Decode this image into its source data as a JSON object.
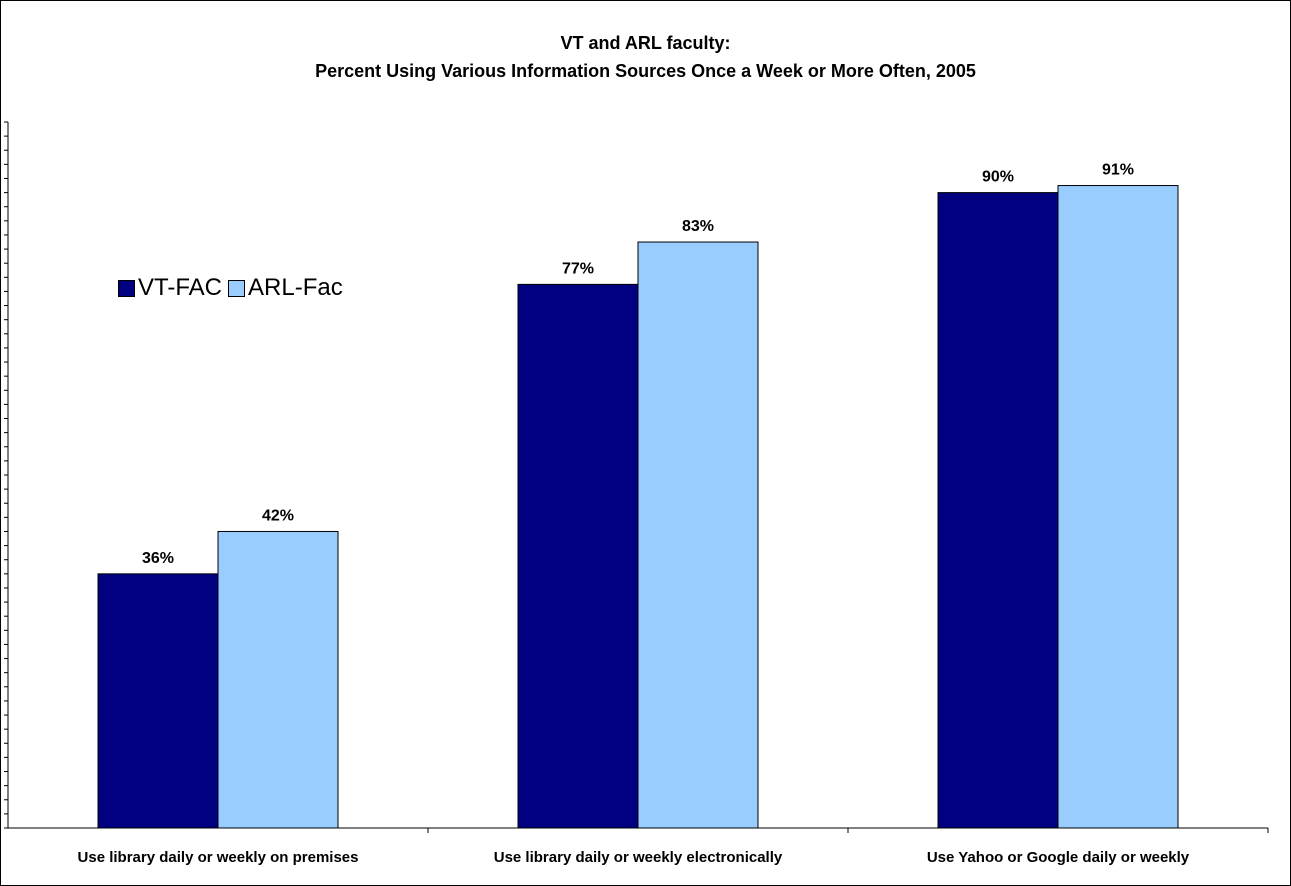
{
  "chart_data": {
    "type": "bar",
    "title": "VT and ARL faculty:",
    "subtitle": "Percent Using Various Information Sources Once a Week or More Often, 2005",
    "categories": [
      "Use library daily or weekly on premises",
      "Use library daily or weekly electronically",
      "Use Yahoo or Google daily or weekly"
    ],
    "series": [
      {
        "name": "VT-FAC",
        "values": [
          36,
          77,
          90
        ],
        "labels": [
          "36%",
          "77%",
          "90%"
        ],
        "color": "#000080"
      },
      {
        "name": "ARL-Fac",
        "values": [
          42,
          83,
          91
        ],
        "labels": [
          "42%",
          "83%",
          "91%"
        ],
        "color": "#99ccff"
      }
    ],
    "ylim": [
      0,
      100
    ],
    "xlabel": "",
    "ylabel": "",
    "grid": false,
    "legend": "left"
  }
}
